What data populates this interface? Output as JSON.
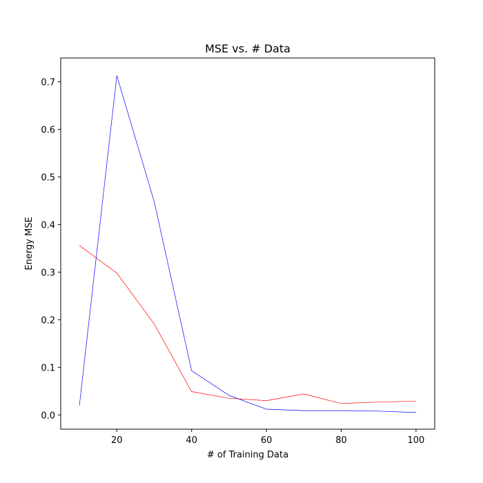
{
  "chart_data": {
    "type": "line",
    "title": "MSE vs. # Data",
    "xlabel": "# of Training Data",
    "ylabel": "Energy MSE",
    "xlim": [
      5,
      105
    ],
    "ylim": [
      -0.03,
      0.75
    ],
    "xticks": [
      20,
      40,
      60,
      80,
      100
    ],
    "yticks": [
      0.0,
      0.1,
      0.2,
      0.3,
      0.4,
      0.5,
      0.6,
      0.7
    ],
    "ytick_labels": [
      "0.0",
      "0.1",
      "0.2",
      "0.3",
      "0.4",
      "0.5",
      "0.6",
      "0.7"
    ],
    "grid": false,
    "series": [
      {
        "color": "#0000ff",
        "x": [
          10,
          20,
          30,
          40,
          50,
          60,
          70,
          80,
          90,
          100
        ],
        "values": [
          0.02,
          0.713,
          0.448,
          0.093,
          0.041,
          0.012,
          0.009,
          0.009,
          0.008,
          0.005
        ]
      },
      {
        "color": "#ff0000",
        "x": [
          10,
          20,
          30,
          40,
          50,
          60,
          70,
          80,
          90,
          100
        ],
        "values": [
          0.356,
          0.298,
          0.191,
          0.049,
          0.035,
          0.03,
          0.044,
          0.024,
          0.027,
          0.029
        ]
      }
    ]
  }
}
